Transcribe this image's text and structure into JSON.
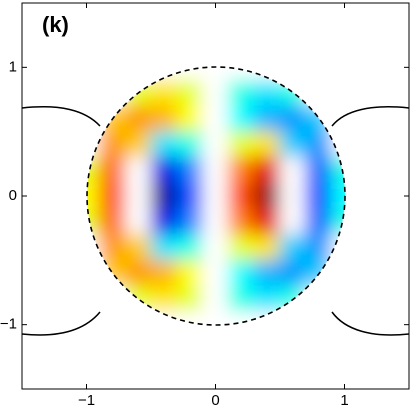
{
  "chart_data": {
    "type": "contour",
    "title": "(k)",
    "colormap": "jet",
    "x": [
      -1,
      -0.8,
      -0.6,
      -0.4,
      -0.2,
      0,
      0.2,
      0.4,
      0.6,
      0.8,
      1
    ],
    "y": [
      1,
      0.8,
      0.6,
      0.4,
      0.2,
      0,
      -0.2,
      -0.4,
      -0.6,
      -0.8,
      -1
    ],
    "z": [
      [
        0,
        0,
        0,
        0,
        0,
        0,
        0,
        0,
        0,
        0,
        0
      ],
      [
        0,
        0,
        0.2,
        0.3,
        0.2,
        0,
        -0.2,
        -0.3,
        -0.2,
        0,
        0
      ],
      [
        0,
        0.35,
        0.45,
        0.4,
        0.25,
        0,
        -0.25,
        -0.4,
        -0.45,
        -0.35,
        0
      ],
      [
        0.1,
        0.45,
        0.35,
        -0.3,
        -0.2,
        0,
        0.2,
        0.3,
        -0.35,
        -0.45,
        -0.1
      ],
      [
        0.2,
        0.55,
        0.15,
        -0.8,
        -0.5,
        0,
        0.5,
        0.8,
        -0.15,
        -0.55,
        -0.2
      ],
      [
        0.25,
        0.6,
        0.1,
        -0.95,
        -0.6,
        0,
        0.6,
        0.95,
        -0.1,
        -0.6,
        -0.25
      ],
      [
        0.2,
        0.55,
        0.15,
        -0.8,
        -0.5,
        0,
        0.5,
        0.8,
        -0.15,
        -0.55,
        -0.2
      ],
      [
        0.1,
        0.45,
        0.35,
        -0.3,
        -0.2,
        0,
        0.2,
        0.3,
        -0.35,
        -0.45,
        -0.1
      ],
      [
        0,
        0.35,
        0.45,
        0.4,
        0.25,
        0,
        -0.25,
        -0.4,
        -0.45,
        -0.35,
        0
      ],
      [
        0,
        0,
        0.2,
        0.3,
        0.2,
        0,
        -0.2,
        -0.3,
        -0.2,
        0,
        0
      ],
      [
        0,
        0,
        0,
        0,
        0,
        0,
        0,
        0,
        0,
        0,
        0
      ]
    ],
    "zlim": [
      -1,
      1
    ],
    "xlim": [
      -1.5,
      1.5
    ],
    "ylim": [
      -1.5,
      1.5
    ],
    "xticks": [
      {
        "value": -1,
        "label": "−1"
      },
      0,
      1
    ],
    "yticks": [
      {
        "value": -1,
        "label": "−1"
      },
      0,
      1
    ]
  }
}
